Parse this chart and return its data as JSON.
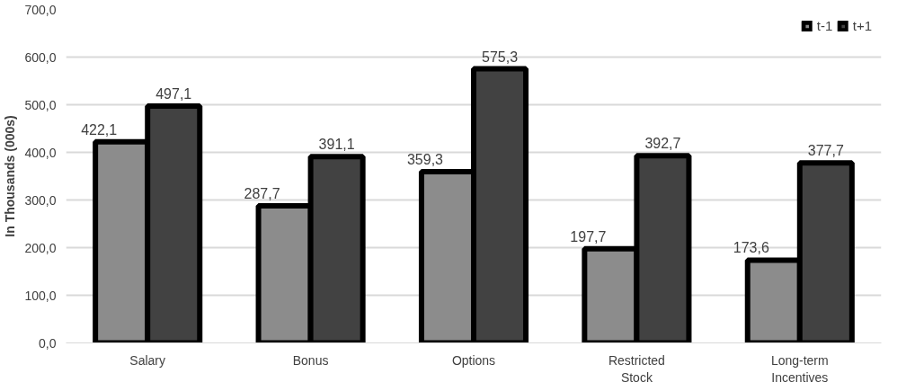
{
  "chart_data": {
    "type": "bar",
    "ylabel": "In Thousands (000s)",
    "categories": [
      "Salary",
      "Bonus",
      "Options",
      "Restricted\nStock",
      "Long-term\nIncentives"
    ],
    "series": [
      {
        "name": "t-1",
        "color": "#8c8c8c",
        "values": [
          422.1,
          287.7,
          359.3,
          197.7,
          173.6
        ],
        "value_labels": [
          "422,1",
          "287,7",
          "359,3",
          "197,7",
          "173,6"
        ]
      },
      {
        "name": "t+1",
        "color": "#424242",
        "values": [
          497.1,
          391.1,
          575.3,
          392.7,
          377.7
        ],
        "value_labels": [
          "497,1",
          "391,1",
          "575,3",
          "392,7",
          "377,7"
        ]
      }
    ],
    "ylim": [
      0,
      700
    ],
    "yticks": [
      {
        "value": 0,
        "label": "0,0"
      },
      {
        "value": 100,
        "label": "100,0"
      },
      {
        "value": 200,
        "label": "200,0"
      },
      {
        "value": 300,
        "label": "300,0"
      },
      {
        "value": 400,
        "label": "400,0"
      },
      {
        "value": 500,
        "label": "500,0"
      },
      {
        "value": 600,
        "label": "600,0"
      },
      {
        "value": 700,
        "label": "700,0"
      }
    ],
    "grid": "y",
    "legend": "top right"
  }
}
